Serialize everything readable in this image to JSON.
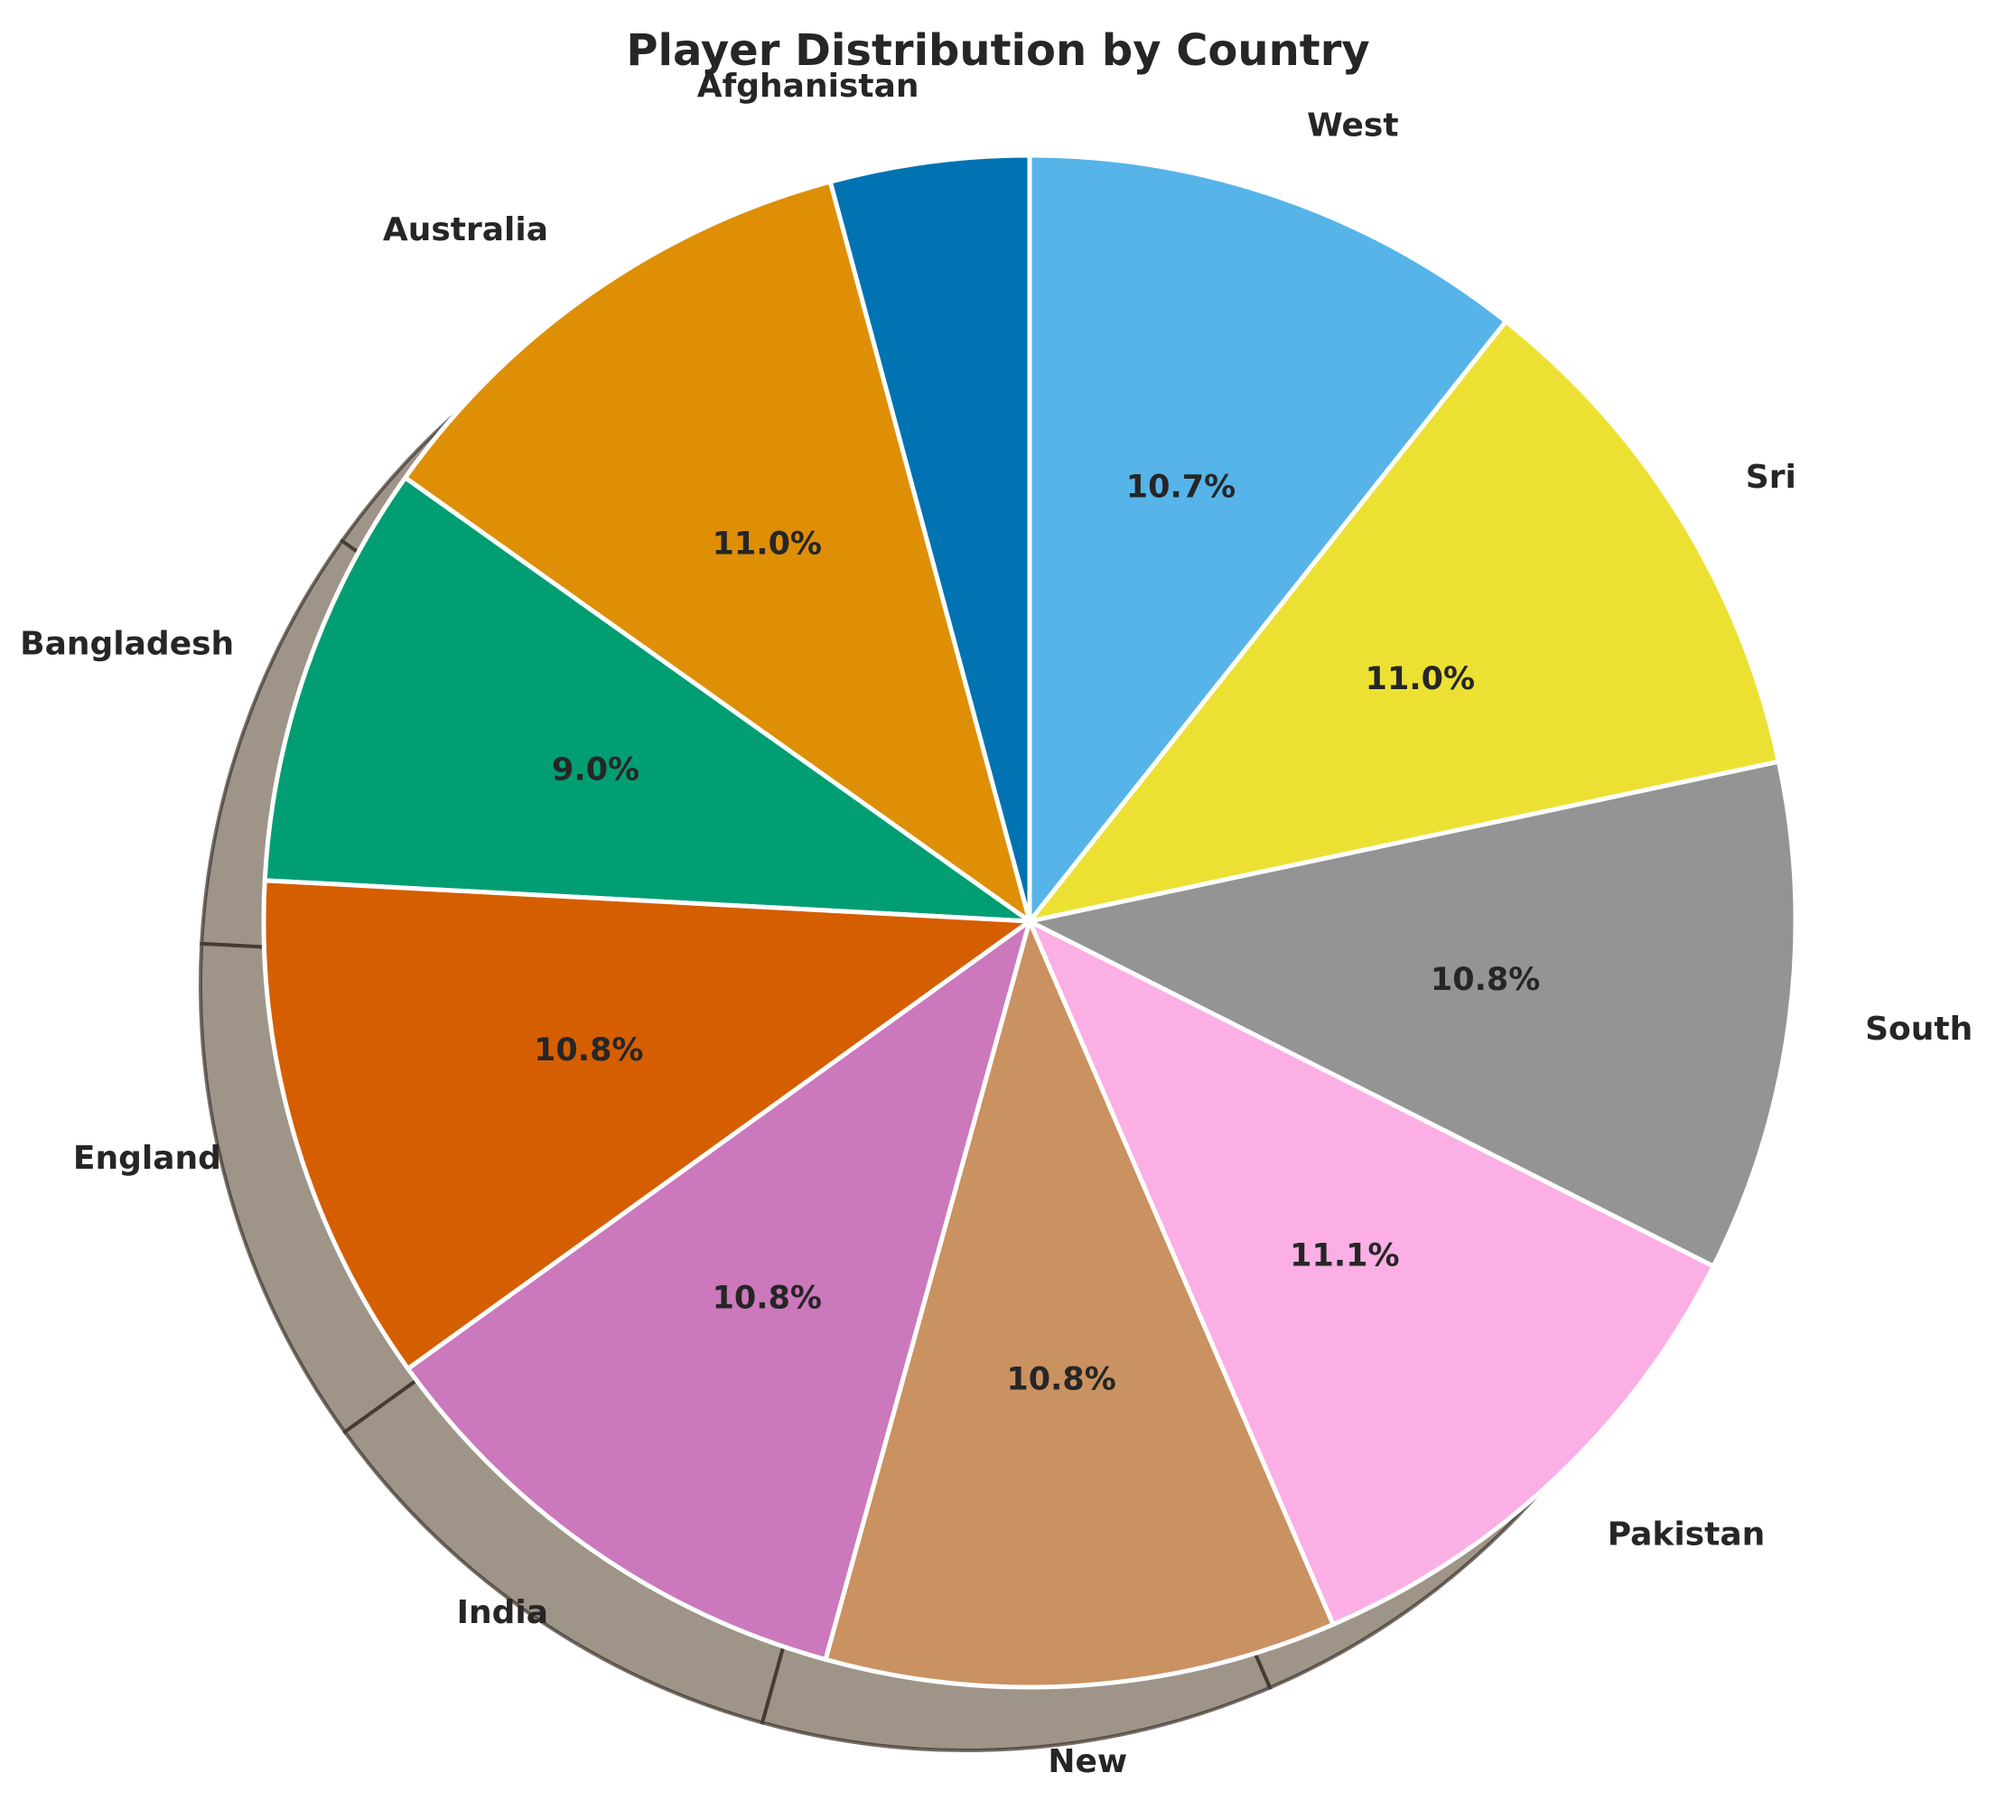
{
  "chart_data": {
    "type": "pie",
    "title": "Player Distribution by Country",
    "categories": [
      "Afghanistan",
      "Australia",
      "Bangladesh",
      "England",
      "India",
      "New",
      "Pakistan",
      "South",
      "Sri",
      "West"
    ],
    "values": [
      4.2,
      11.0,
      9.0,
      10.8,
      10.8,
      10.8,
      11.1,
      10.8,
      11.0,
      10.7
    ],
    "pct_labels": [
      "",
      "11.0%",
      "9.0%",
      "10.8%",
      "10.8%",
      "10.8%",
      "11.1%",
      "10.8%",
      "11.0%",
      "10.7%"
    ],
    "colors": [
      "#0173b2",
      "#de8f05",
      "#029e73",
      "#d55e00",
      "#cc78bc",
      "#ca9161",
      "#fbafe4",
      "#949494",
      "#ece133",
      "#56b4e9"
    ],
    "shadow_color": "#6b5a48",
    "start_angle_deg": 90,
    "direction": "counterclockwise",
    "shadow": true,
    "legend": "none"
  }
}
